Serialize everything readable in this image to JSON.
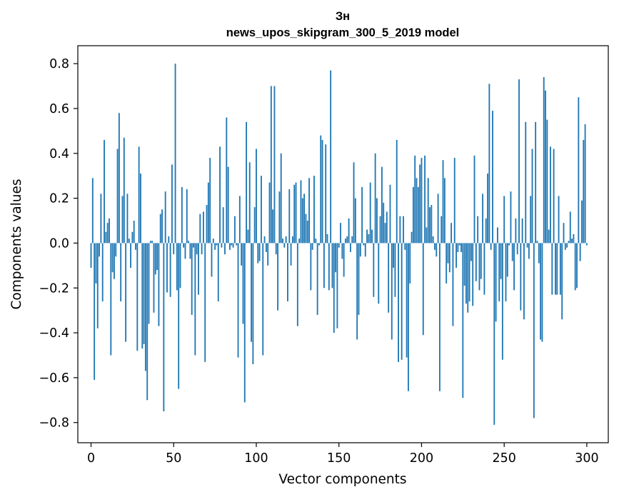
{
  "chart_data": {
    "type": "bar",
    "title_lines": [
      "Зн",
      "news_upos_skipgram_300_5_2019 model"
    ],
    "xlabel": "Vector components",
    "ylabel": "Components values",
    "xlim": [
      -8,
      313
    ],
    "ylim": [
      -0.89,
      0.88
    ],
    "xticks": [
      0,
      50,
      100,
      150,
      200,
      250,
      300
    ],
    "yticks": [
      -0.8,
      -0.6,
      -0.4,
      -0.2,
      0.0,
      0.2,
      0.4,
      0.6,
      0.8
    ],
    "xtick_labels": [
      "0",
      "50",
      "100",
      "150",
      "200",
      "250",
      "300"
    ],
    "ytick_labels": [
      "−0.8",
      "−0.6",
      "−0.4",
      "−0.2",
      "0.0",
      "0.2",
      "0.4",
      "0.6",
      "0.8"
    ],
    "bar_color": "#1f77b4",
    "grid": false,
    "values": [
      -0.11,
      0.29,
      -0.61,
      -0.18,
      -0.38,
      -0.06,
      0.22,
      -0.26,
      0.46,
      0.05,
      0.09,
      0.11,
      -0.5,
      -0.13,
      -0.16,
      -0.06,
      0.42,
      0.58,
      -0.26,
      0.21,
      0.47,
      -0.44,
      0.22,
      0.02,
      -0.11,
      0.05,
      0.1,
      -0.03,
      -0.48,
      0.43,
      0.31,
      -0.47,
      -0.45,
      -0.57,
      -0.7,
      -0.36,
      0.01,
      0.01,
      -0.31,
      -0.14,
      -0.12,
      -0.37,
      0.13,
      0.15,
      -0.75,
      0.23,
      -0.22,
      0.03,
      -0.24,
      0.35,
      -0.05,
      0.8,
      -0.21,
      -0.65,
      -0.2,
      0.25,
      -0.02,
      -0.07,
      0.24,
      0.01,
      -0.07,
      -0.32,
      -0.02,
      -0.5,
      -0.05,
      -0.23,
      0.13,
      -0.05,
      0.14,
      -0.53,
      0.17,
      0.27,
      0.38,
      -0.15,
      0.02,
      -0.03,
      -0.01,
      -0.26,
      0.43,
      -0.02,
      0.16,
      -0.05,
      0.56,
      0.34,
      -0.03,
      -0.01,
      -0.02,
      0.12,
      -0.01,
      -0.51,
      0.21,
      -0.1,
      -0.36,
      -0.71,
      0.54,
      0.06,
      0.36,
      -0.44,
      -0.54,
      0.16,
      0.42,
      -0.09,
      -0.08,
      0.3,
      -0.5,
      0.03,
      -0.04,
      -0.1,
      0.27,
      0.7,
      0.15,
      0.7,
      -0.05,
      -0.3,
      0.23,
      0.4,
      0.02,
      -0.02,
      0.03,
      -0.26,
      0.24,
      -0.1,
      0.03,
      0.26,
      0.27,
      -0.37,
      0.02,
      0.28,
      0.2,
      0.22,
      0.13,
      0.1,
      0.29,
      -0.21,
      -0.03,
      0.3,
      0.02,
      -0.32,
      -0.01,
      0.48,
      0.46,
      -0.2,
      0.44,
      0.04,
      -0.21,
      0.77,
      -0.2,
      -0.4,
      -0.13,
      -0.38,
      -0.02,
      0.09,
      -0.07,
      -0.15,
      0.02,
      0.03,
      0.11,
      -0.04,
      0.03,
      0.36,
      0.2,
      -0.43,
      -0.32,
      -0.06,
      0.25,
      -0.01,
      -0.06,
      0.06,
      0.04,
      0.27,
      0.06,
      -0.24,
      0.4,
      0.2,
      -0.27,
      0.12,
      0.34,
      0.18,
      0.09,
      0.14,
      -0.31,
      0.26,
      -0.43,
      -0.11,
      -0.24,
      0.46,
      -0.53,
      0.12,
      -0.52,
      0.12,
      -0.03,
      -0.51,
      -0.66,
      -0.18,
      0.05,
      0.25,
      0.39,
      0.29,
      0.25,
      0.35,
      0.38,
      -0.41,
      0.39,
      0.07,
      0.29,
      0.16,
      0.17,
      0.03,
      -0.03,
      -0.06,
      0.22,
      -0.66,
      0.12,
      0.37,
      0.29,
      -0.18,
      -0.09,
      -0.13,
      0.09,
      -0.37,
      0.38,
      -0.11,
      -0.04,
      -0.01,
      -0.04,
      -0.69,
      -0.19,
      -0.27,
      -0.31,
      -0.26,
      -0.08,
      -0.28,
      0.39,
      -0.17,
      0.12,
      -0.21,
      -0.16,
      0.22,
      -0.23,
      0.11,
      0.31,
      0.71,
      -0.03,
      0.59,
      -0.81,
      -0.35,
      0.07,
      -0.26,
      -0.16,
      -0.52,
      0.21,
      -0.26,
      -0.15,
      -0.01,
      0.23,
      -0.08,
      -0.21,
      0.11,
      -0.05,
      0.73,
      -0.3,
      0.11,
      -0.34,
      0.54,
      -0.02,
      -0.07,
      0.21,
      0.42,
      -0.78,
      0.54,
      0.01,
      -0.09,
      -0.43,
      -0.44,
      0.74,
      0.68,
      0.55,
      0.06,
      0.43,
      -0.23,
      0.42,
      -0.23,
      -0.23,
      0.21,
      -0.23,
      -0.34,
      0.09,
      -0.03,
      -0.02,
      0.01,
      0.14,
      0.02,
      0.04,
      -0.21,
      -0.2,
      0.65,
      -0.08,
      0.19,
      0.46,
      0.53,
      -0.01
    ]
  }
}
